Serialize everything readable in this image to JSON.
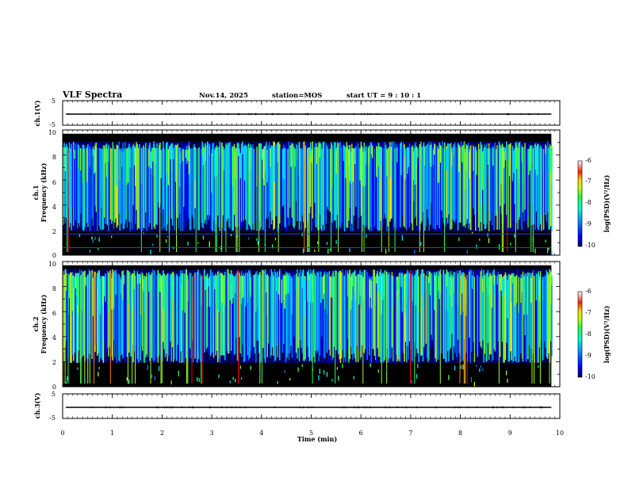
{
  "header": {
    "title": "VLF Spectra",
    "date": "Nov.14, 2025",
    "station": "station=MOS",
    "start_ut": "start  UT =   9 : 10 : 1"
  },
  "chart_data": {
    "type": "heatmap",
    "x_axis": {
      "label": "Time  (min)",
      "range": [
        0,
        10
      ],
      "ticks": [
        "0",
        "1",
        "2",
        "3",
        "4",
        "5",
        "6",
        "7",
        "8",
        "9",
        "10"
      ],
      "data_end": 9.83
    },
    "panels": [
      {
        "name": "ch1-voltage",
        "kind": "line",
        "ylabel": "ch.1(V)",
        "ylim": [
          -5,
          5
        ],
        "ytick_labels": [
          "5",
          "-5"
        ],
        "trace_level": 0
      },
      {
        "name": "ch1-spectrogram",
        "kind": "spectrogram",
        "ylabel_line1": "ch.1",
        "ylabel_line2": "Frequency (kHz)",
        "ylim": [
          0,
          10
        ],
        "ytick_labels": [
          "0",
          "2",
          "4",
          "6",
          "8",
          "10"
        ],
        "band_top_khz": 9.7,
        "active_band_khz": [
          1.9,
          9.1
        ],
        "interference_lines_khz": [
          0.6,
          1.7
        ],
        "colorbar": {
          "label": "log(PSD)(V²/Hz)",
          "range": [
            -10,
            -6
          ],
          "tick_labels": [
            "-6",
            "-7",
            "-8",
            "-9",
            "-10"
          ]
        }
      },
      {
        "name": "ch2-spectrogram",
        "kind": "spectrogram",
        "ylabel_line1": "ch.2",
        "ylabel_line2": "Frequency (kHz)",
        "ylim": [
          0,
          10
        ],
        "ytick_labels": [
          "0",
          "2",
          "4",
          "6",
          "8",
          "10"
        ],
        "band_top_khz": 9.7,
        "active_band_khz": [
          1.9,
          9.4
        ],
        "interference_lines_khz": [],
        "colorbar": {
          "label": "log(PSD)(V²/Hz)",
          "range": [
            -10,
            -6
          ],
          "tick_labels": [
            "-6",
            "-7",
            "-8",
            "-9",
            "-10"
          ]
        }
      },
      {
        "name": "ch3-voltage",
        "kind": "line",
        "ylabel": "ch.3(V)",
        "ylim": [
          -5,
          5
        ],
        "ytick_labels": [
          "5",
          "-5"
        ],
        "trace_level": 0
      }
    ],
    "colormap": [
      "#000000",
      "#00007f",
      "#0000ff",
      "#0080ff",
      "#00e0ff",
      "#30ff60",
      "#a0ff20",
      "#ffff00",
      "#ff8000",
      "#ff0000",
      "#ffffff"
    ]
  }
}
